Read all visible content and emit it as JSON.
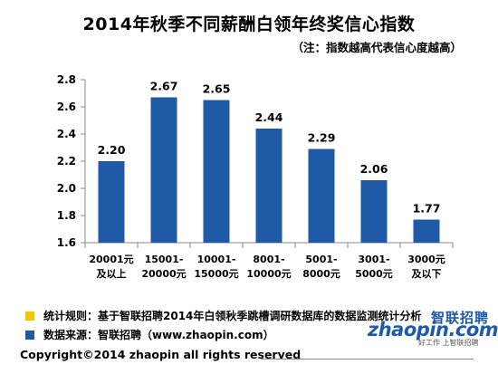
{
  "title": "2014年秋季不同薪酬白领年终奖信心指数",
  "subtitle": "（注：指数越高代表信心度越高）",
  "chart_data": {
    "type": "bar",
    "title": "2014年秋季不同薪酬白领年终奖信心指数",
    "categories": [
      [
        "20001元",
        "及以上"
      ],
      [
        "15001-",
        "20000元"
      ],
      [
        "10001-",
        "15000元"
      ],
      [
        "8001-",
        "10000元"
      ],
      [
        "5001-",
        "8000元"
      ],
      [
        "3001-",
        "5000元"
      ],
      [
        "3000元",
        "及以下"
      ]
    ],
    "values": [
      2.2,
      2.67,
      2.65,
      2.44,
      2.29,
      2.06,
      1.77
    ],
    "data_labels": [
      "2.20",
      "2.67",
      "2.65",
      "2.44",
      "2.29",
      "2.06",
      "1.77"
    ],
    "ylim": [
      1.6,
      2.8
    ],
    "yticks": [
      1.6,
      1.8,
      2.0,
      2.2,
      2.4,
      2.6,
      2.8
    ],
    "ytick_labels": [
      "1.6",
      "1.8",
      "2.0",
      "2.2",
      "2.4",
      "2.6",
      "2.8"
    ],
    "xlabel": "",
    "ylabel": "",
    "bar_color": "#1f5aa6",
    "grid": false
  },
  "legend": [
    {
      "text": "统计规则：基于智联招聘2014年白领秋季跳槽调研数据库的数据监测统计分析",
      "color": "#f2c500"
    },
    {
      "text": "数据来源：智联招聘（www.zhaopin.com）",
      "color": "#1f5aa6"
    }
  ],
  "copyright": "Copyright©2014 zhaopin all rights reserved",
  "logo": {
    "main": "zhaopin.com",
    "cn": "智联招聘",
    "tagline": "好工作 上智联招聘"
  }
}
